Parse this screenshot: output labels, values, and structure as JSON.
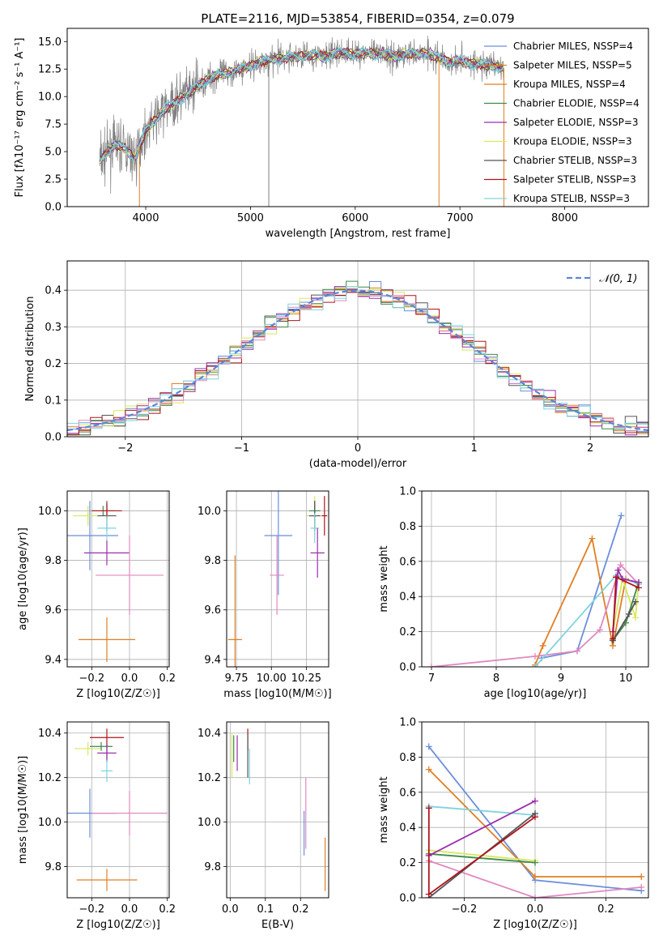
{
  "colors": [
    "#6a8fdb",
    "#e07f22",
    "#e07f22",
    "#3e8a49",
    "#9a2fae",
    "#d8e85a",
    "#555555",
    "#b0141c",
    "#7fd4de"
  ],
  "hist_colors": [
    "#6a8fdb",
    "#e07f22",
    "#555555",
    "#3e8a49",
    "#d8e85a",
    "#9a2fae",
    "#b0141c",
    "#e089c0",
    "#7fd4de"
  ],
  "chart_data": [
    {
      "id": "spectrum",
      "type": "line",
      "title": "PLATE=2116, MJD=53854, FIBERID=0354, z=0.079",
      "xlabel": "wavelength [Angstrom, rest frame]",
      "ylabel": "Flux [fλ10⁻¹⁷ erg cm⁻² s⁻¹ A⁻¹]",
      "xlim": [
        3250,
        8800
      ],
      "ylim": [
        0,
        16.2
      ],
      "xticks": [
        4000,
        5000,
        6000,
        7000,
        8000
      ],
      "yticks": [
        0.0,
        2.5,
        5.0,
        7.5,
        10.0,
        12.5,
        15.0
      ],
      "xtick_labels": [
        "4000",
        "5000",
        "6000",
        "7000",
        "8000"
      ],
      "ytick_labels": [
        "0.0",
        "2.5",
        "5.0",
        "7.5",
        "10.0",
        "12.5",
        "15.0"
      ],
      "data_x_range": [
        3560,
        7420
      ],
      "model_points": {
        "x": [
          3560,
          3700,
          3800,
          3900,
          3950,
          4000,
          4100,
          4200,
          4300,
          4400,
          4500,
          4600,
          4700,
          4800,
          4900,
          5000,
          5100,
          5200,
          5300,
          5400,
          5500,
          5600,
          5700,
          5800,
          5900,
          6000,
          6100,
          6200,
          6300,
          6400,
          6500,
          6600,
          6700,
          6800,
          6900,
          7000,
          7100,
          7200,
          7300,
          7420
        ],
        "y": [
          4.2,
          5.6,
          5.3,
          4.3,
          5.8,
          6.9,
          8.0,
          9.0,
          9.6,
          10.2,
          11.0,
          11.6,
          12.0,
          12.2,
          12.5,
          12.8,
          13.2,
          13.3,
          13.5,
          13.6,
          13.7,
          13.8,
          13.6,
          13.9,
          14.0,
          13.9,
          14.0,
          13.8,
          13.9,
          13.6,
          13.9,
          13.9,
          14.0,
          13.5,
          13.1,
          13.3,
          13.0,
          13.0,
          12.7,
          12.6
        ]
      },
      "legend": [
        "Chabrier MILES, NSSP=4",
        "Salpeter MILES, NSSP=5",
        "Kroupa MILES, NSSP=4",
        "Chabrier ELODIE, NSSP=4",
        "Salpeter ELODIE, NSSP=3",
        "Kroupa ELODIE, NSSP=3",
        "Chabrier STELIB, NSSP=3",
        "Salpeter STELIB, NSSP=3",
        "Kroupa STELIB, NSSP=3"
      ],
      "legend_placement": "right"
    },
    {
      "id": "residuals",
      "type": "histogram",
      "xlabel": "(data-model)/error",
      "ylabel": "Normed distribution",
      "xlim": [
        -2.5,
        2.5
      ],
      "ylim": [
        0,
        0.48
      ],
      "xticks": [
        -2,
        -1,
        0,
        1,
        2
      ],
      "yticks": [
        0.0,
        0.1,
        0.2,
        0.3,
        0.4
      ],
      "xtick_labels": [
        "−2",
        "−1",
        "0",
        "1",
        "2"
      ],
      "ytick_labels": [
        "0.0",
        "0.1",
        "0.2",
        "0.3",
        "0.4"
      ],
      "reference_label": "𝒩(0, 1)",
      "bin_width": 0.1,
      "grid": true
    },
    {
      "id": "age_vs_Z",
      "type": "scatter",
      "xlabel": "Z [log10(Z/Z☉)]",
      "ylabel": "age  [log10(age/yr)]",
      "xlim": [
        -0.33,
        0.21
      ],
      "ylim": [
        9.37,
        10.08
      ],
      "xticks": [
        -0.2,
        0.0,
        0.2
      ],
      "yticks": [
        9.4,
        9.6,
        9.8,
        10.0
      ],
      "xtick_labels": [
        "−0.2",
        "0.0",
        "0.2"
      ],
      "ytick_labels": [
        "9.4",
        "9.6",
        "9.8",
        "10.0"
      ],
      "points": [
        {
          "x": -0.21,
          "y": 9.9,
          "xerr": 0.15,
          "yerr": 0.14,
          "c": 0
        },
        {
          "x": -0.12,
          "y": 9.48,
          "xerr": 0.15,
          "yerr": 0.09,
          "c": 1
        },
        {
          "x": -0.22,
          "y": 9.98,
          "xerr": 0.08,
          "yerr": 0.04,
          "c": 5
        },
        {
          "x": -0.14,
          "y": 10.0,
          "xerr": 0.06,
          "yerr": 0.02,
          "c": 3
        },
        {
          "x": -0.12,
          "y": 9.98,
          "xerr": 0.05,
          "yerr": 0.06,
          "c": 6
        },
        {
          "x": -0.12,
          "y": 10.0,
          "xerr": 0.08,
          "yerr": 0.03,
          "c": 7
        },
        {
          "x": -0.12,
          "y": 9.93,
          "xerr": 0.05,
          "yerr": 0.05,
          "c": 8
        },
        {
          "x": -0.12,
          "y": 9.83,
          "xerr": 0.12,
          "yerr": 0.05,
          "c": 4
        },
        {
          "x": 0.0,
          "y": 9.74,
          "xerr": 0.18,
          "yerr": 0.16,
          "c": 10
        }
      ]
    },
    {
      "id": "age_vs_mass",
      "type": "scatter",
      "xlabel": "mass [log10(M/M☉)]",
      "ylabel": "",
      "xlim": [
        9.68,
        10.41
      ],
      "ylim": [
        9.37,
        10.08
      ],
      "xticks": [
        9.75,
        10.0,
        10.25
      ],
      "yticks": [
        9.4,
        9.6,
        9.8,
        10.0
      ],
      "xtick_labels": [
        "9.75",
        "10.00",
        "10.25"
      ],
      "ytick_labels": [
        "9.4",
        "9.6",
        "9.8",
        "10.0"
      ],
      "points": [
        {
          "x": 9.74,
          "y": 9.48,
          "xerr": 0.05,
          "yerr": 0.34,
          "c": 1
        },
        {
          "x": 10.05,
          "y": 9.9,
          "xerr": 0.1,
          "yerr": 0.24,
          "c": 0
        },
        {
          "x": 10.04,
          "y": 9.74,
          "xerr": 0.05,
          "yerr": 0.16,
          "c": 10
        },
        {
          "x": 10.31,
          "y": 9.98,
          "xerr": 0.06,
          "yerr": 0.08,
          "c": 5
        },
        {
          "x": 10.31,
          "y": 10.0,
          "xerr": 0.04,
          "yerr": 0.04,
          "c": 3
        },
        {
          "x": 10.31,
          "y": 9.98,
          "xerr": 0.04,
          "yerr": 0.06,
          "c": 6
        },
        {
          "x": 10.38,
          "y": 9.98,
          "xerr": 0.02,
          "yerr": 0.08,
          "c": 7
        },
        {
          "x": 10.31,
          "y": 9.93,
          "xerr": 0.03,
          "yerr": 0.06,
          "c": 8
        },
        {
          "x": 10.33,
          "y": 9.83,
          "xerr": 0.05,
          "yerr": 0.1,
          "c": 4
        }
      ]
    },
    {
      "id": "weight_vs_age",
      "type": "line",
      "xlabel": "age  [log10(age/yr)]",
      "ylabel": "mass weight",
      "xlim": [
        6.85,
        10.35
      ],
      "ylim": [
        0,
        1.0
      ],
      "xticks": [
        7,
        8,
        9,
        10
      ],
      "yticks": [
        0.0,
        0.2,
        0.4,
        0.6,
        0.8,
        1.0
      ],
      "xtick_labels": [
        "7",
        "8",
        "9",
        "10"
      ],
      "ytick_labels": [
        "0.0",
        "0.2",
        "0.4",
        "0.6",
        "0.8",
        "1.0"
      ],
      "series": [
        {
          "c": 0,
          "x": [
            8.7,
            9.25,
            9.93
          ],
          "y": [
            0.05,
            0.09,
            0.86
          ]
        },
        {
          "c": 1,
          "x": [
            8.6,
            8.72,
            9.48,
            9.8,
            10.0
          ],
          "y": [
            0.01,
            0.12,
            0.73,
            0.12,
            0.5
          ]
        },
        {
          "c": 10,
          "x": [
            7.0,
            8.6,
            9.25,
            9.6,
            9.92,
            10.2
          ],
          "y": [
            0.0,
            0.06,
            0.09,
            0.21,
            0.58,
            0.47
          ]
        },
        {
          "c": 8,
          "x": [
            8.6,
            9.85,
            10.2
          ],
          "y": [
            0.0,
            0.52,
            0.47
          ]
        },
        {
          "c": 5,
          "x": [
            9.8,
            9.95,
            10.15,
            10.2
          ],
          "y": [
            0.2,
            0.5,
            0.28,
            0.48
          ]
        },
        {
          "c": 3,
          "x": [
            9.8,
            10.0,
            10.2
          ],
          "y": [
            0.15,
            0.25,
            0.48
          ]
        },
        {
          "c": 6,
          "x": [
            9.8,
            10.05,
            10.15
          ],
          "y": [
            0.15,
            0.3,
            0.37
          ]
        },
        {
          "c": 4,
          "x": [
            9.8,
            9.88,
            9.95,
            10.2
          ],
          "y": [
            0.2,
            0.55,
            0.5,
            0.48
          ]
        },
        {
          "c": 7,
          "x": [
            9.8,
            9.85,
            10.2
          ],
          "y": [
            0.16,
            0.51,
            0.45
          ]
        }
      ]
    },
    {
      "id": "mass_vs_Z",
      "type": "scatter",
      "xlabel": "Z [log10(Z/Z☉)]",
      "ylabel": "mass [log10(M/M☉)]",
      "xlim": [
        -0.33,
        0.21
      ],
      "ylim": [
        9.66,
        10.45
      ],
      "xticks": [
        -0.2,
        0.0,
        0.2
      ],
      "yticks": [
        9.8,
        10.0,
        10.2,
        10.4
      ],
      "xtick_labels": [
        "−0.2",
        "0.0",
        "0.2"
      ],
      "ytick_labels": [
        "9.8",
        "10.0",
        "10.2",
        "10.4"
      ],
      "points": [
        {
          "x": -0.21,
          "y": 10.04,
          "xerr": 0.14,
          "yerr": 0.11,
          "c": 0
        },
        {
          "x": -0.12,
          "y": 9.74,
          "xerr": 0.16,
          "yerr": 0.05,
          "c": 1
        },
        {
          "x": -0.22,
          "y": 10.33,
          "xerr": 0.07,
          "yerr": 0.03,
          "c": 5
        },
        {
          "x": -0.15,
          "y": 10.34,
          "xerr": 0.06,
          "yerr": 0.02,
          "c": 3
        },
        {
          "x": -0.12,
          "y": 10.31,
          "xerr": 0.05,
          "yerr": 0.04,
          "c": 6
        },
        {
          "x": -0.12,
          "y": 10.38,
          "xerr": 0.09,
          "yerr": 0.04,
          "c": 7
        },
        {
          "x": -0.12,
          "y": 10.31,
          "xerr": 0.05,
          "yerr": 0.04,
          "c": 4
        },
        {
          "x": -0.12,
          "y": 10.23,
          "xerr": 0.03,
          "yerr": 0.05,
          "c": 8
        },
        {
          "x": 0.0,
          "y": 10.04,
          "xerr": 0.2,
          "yerr": 0.1,
          "c": 10
        }
      ]
    },
    {
      "id": "mass_vs_ebv",
      "type": "scatter",
      "xlabel": "E(B-V)",
      "ylabel": "",
      "xlim": [
        -0.01,
        0.28
      ],
      "ylim": [
        9.66,
        10.45
      ],
      "xticks": [
        0.0,
        0.1,
        0.2
      ],
      "yticks": [
        9.8,
        10.0,
        10.2,
        10.4
      ],
      "xtick_labels": [
        "0.0",
        "0.1",
        "0.2"
      ],
      "ytick_labels": [
        "9.8",
        "10.0",
        "10.2",
        "10.4"
      ],
      "points": [
        {
          "x": 0.005,
          "y": 10.3,
          "xerr": 0,
          "yerr": 0.1,
          "c": 5
        },
        {
          "x": 0.01,
          "y": 10.33,
          "xerr": 0,
          "yerr": 0.06,
          "c": 3
        },
        {
          "x": 0.02,
          "y": 10.31,
          "xerr": 0,
          "yerr": 0.08,
          "c": 4
        },
        {
          "x": 0.05,
          "y": 10.37,
          "xerr": 0,
          "yerr": 0.05,
          "c": 7
        },
        {
          "x": 0.05,
          "y": 10.3,
          "xerr": 0,
          "yerr": 0.1,
          "c": 6
        },
        {
          "x": 0.055,
          "y": 10.25,
          "xerr": 0,
          "yerr": 0.08,
          "c": 8
        },
        {
          "x": 0.215,
          "y": 10.04,
          "xerr": 0,
          "yerr": 0.16,
          "c": 10
        },
        {
          "x": 0.21,
          "y": 9.95,
          "xerr": 0,
          "yerr": 0.1,
          "c": 0
        },
        {
          "x": 0.27,
          "y": 9.81,
          "xerr": 0,
          "yerr": 0.12,
          "c": 1
        }
      ]
    },
    {
      "id": "weight_vs_Z",
      "type": "line",
      "xlabel": "Z [log10(Z/Z☉)]",
      "ylabel": "mass weight",
      "xlim": [
        -0.32,
        0.32
      ],
      "ylim": [
        0,
        1.0
      ],
      "xticks": [
        -0.2,
        0.0,
        0.2
      ],
      "yticks": [
        0.0,
        0.2,
        0.4,
        0.6,
        0.8,
        1.0
      ],
      "xtick_labels": [
        "−0.2",
        "0.0",
        "0.2"
      ],
      "ytick_labels": [
        "0.0",
        "0.2",
        "0.4",
        "0.6",
        "0.8",
        "1.0"
      ],
      "series": [
        {
          "c": 0,
          "x": [
            -0.3,
            0.0,
            0.3
          ],
          "y": [
            0.86,
            0.1,
            0.04
          ]
        },
        {
          "c": 1,
          "x": [
            -0.3,
            0.0,
            0.3
          ],
          "y": [
            0.73,
            0.12,
            0.12
          ]
        },
        {
          "c": 8,
          "x": [
            -0.3,
            0.0
          ],
          "y": [
            0.52,
            0.47
          ]
        },
        {
          "c": 5,
          "x": [
            -0.3,
            0.0
          ],
          "y": [
            0.27,
            0.21
          ]
        },
        {
          "c": 3,
          "x": [
            -0.3,
            0.0
          ],
          "y": [
            0.25,
            0.2
          ]
        },
        {
          "c": 10,
          "x": [
            -0.3,
            0.0,
            0.3
          ],
          "y": [
            0.21,
            0.0,
            0.06
          ]
        },
        {
          "c": 4,
          "x": [
            -0.3,
            0.0
          ],
          "y": [
            0.24,
            0.55
          ]
        },
        {
          "c": 6,
          "x": [
            -0.3,
            0.0
          ],
          "y": [
            0.0,
            0.48
          ]
        },
        {
          "c": 7,
          "x": [
            -0.3,
            -0.3,
            0.0
          ],
          "y": [
            0.51,
            0.02,
            0.46
          ]
        }
      ]
    }
  ]
}
